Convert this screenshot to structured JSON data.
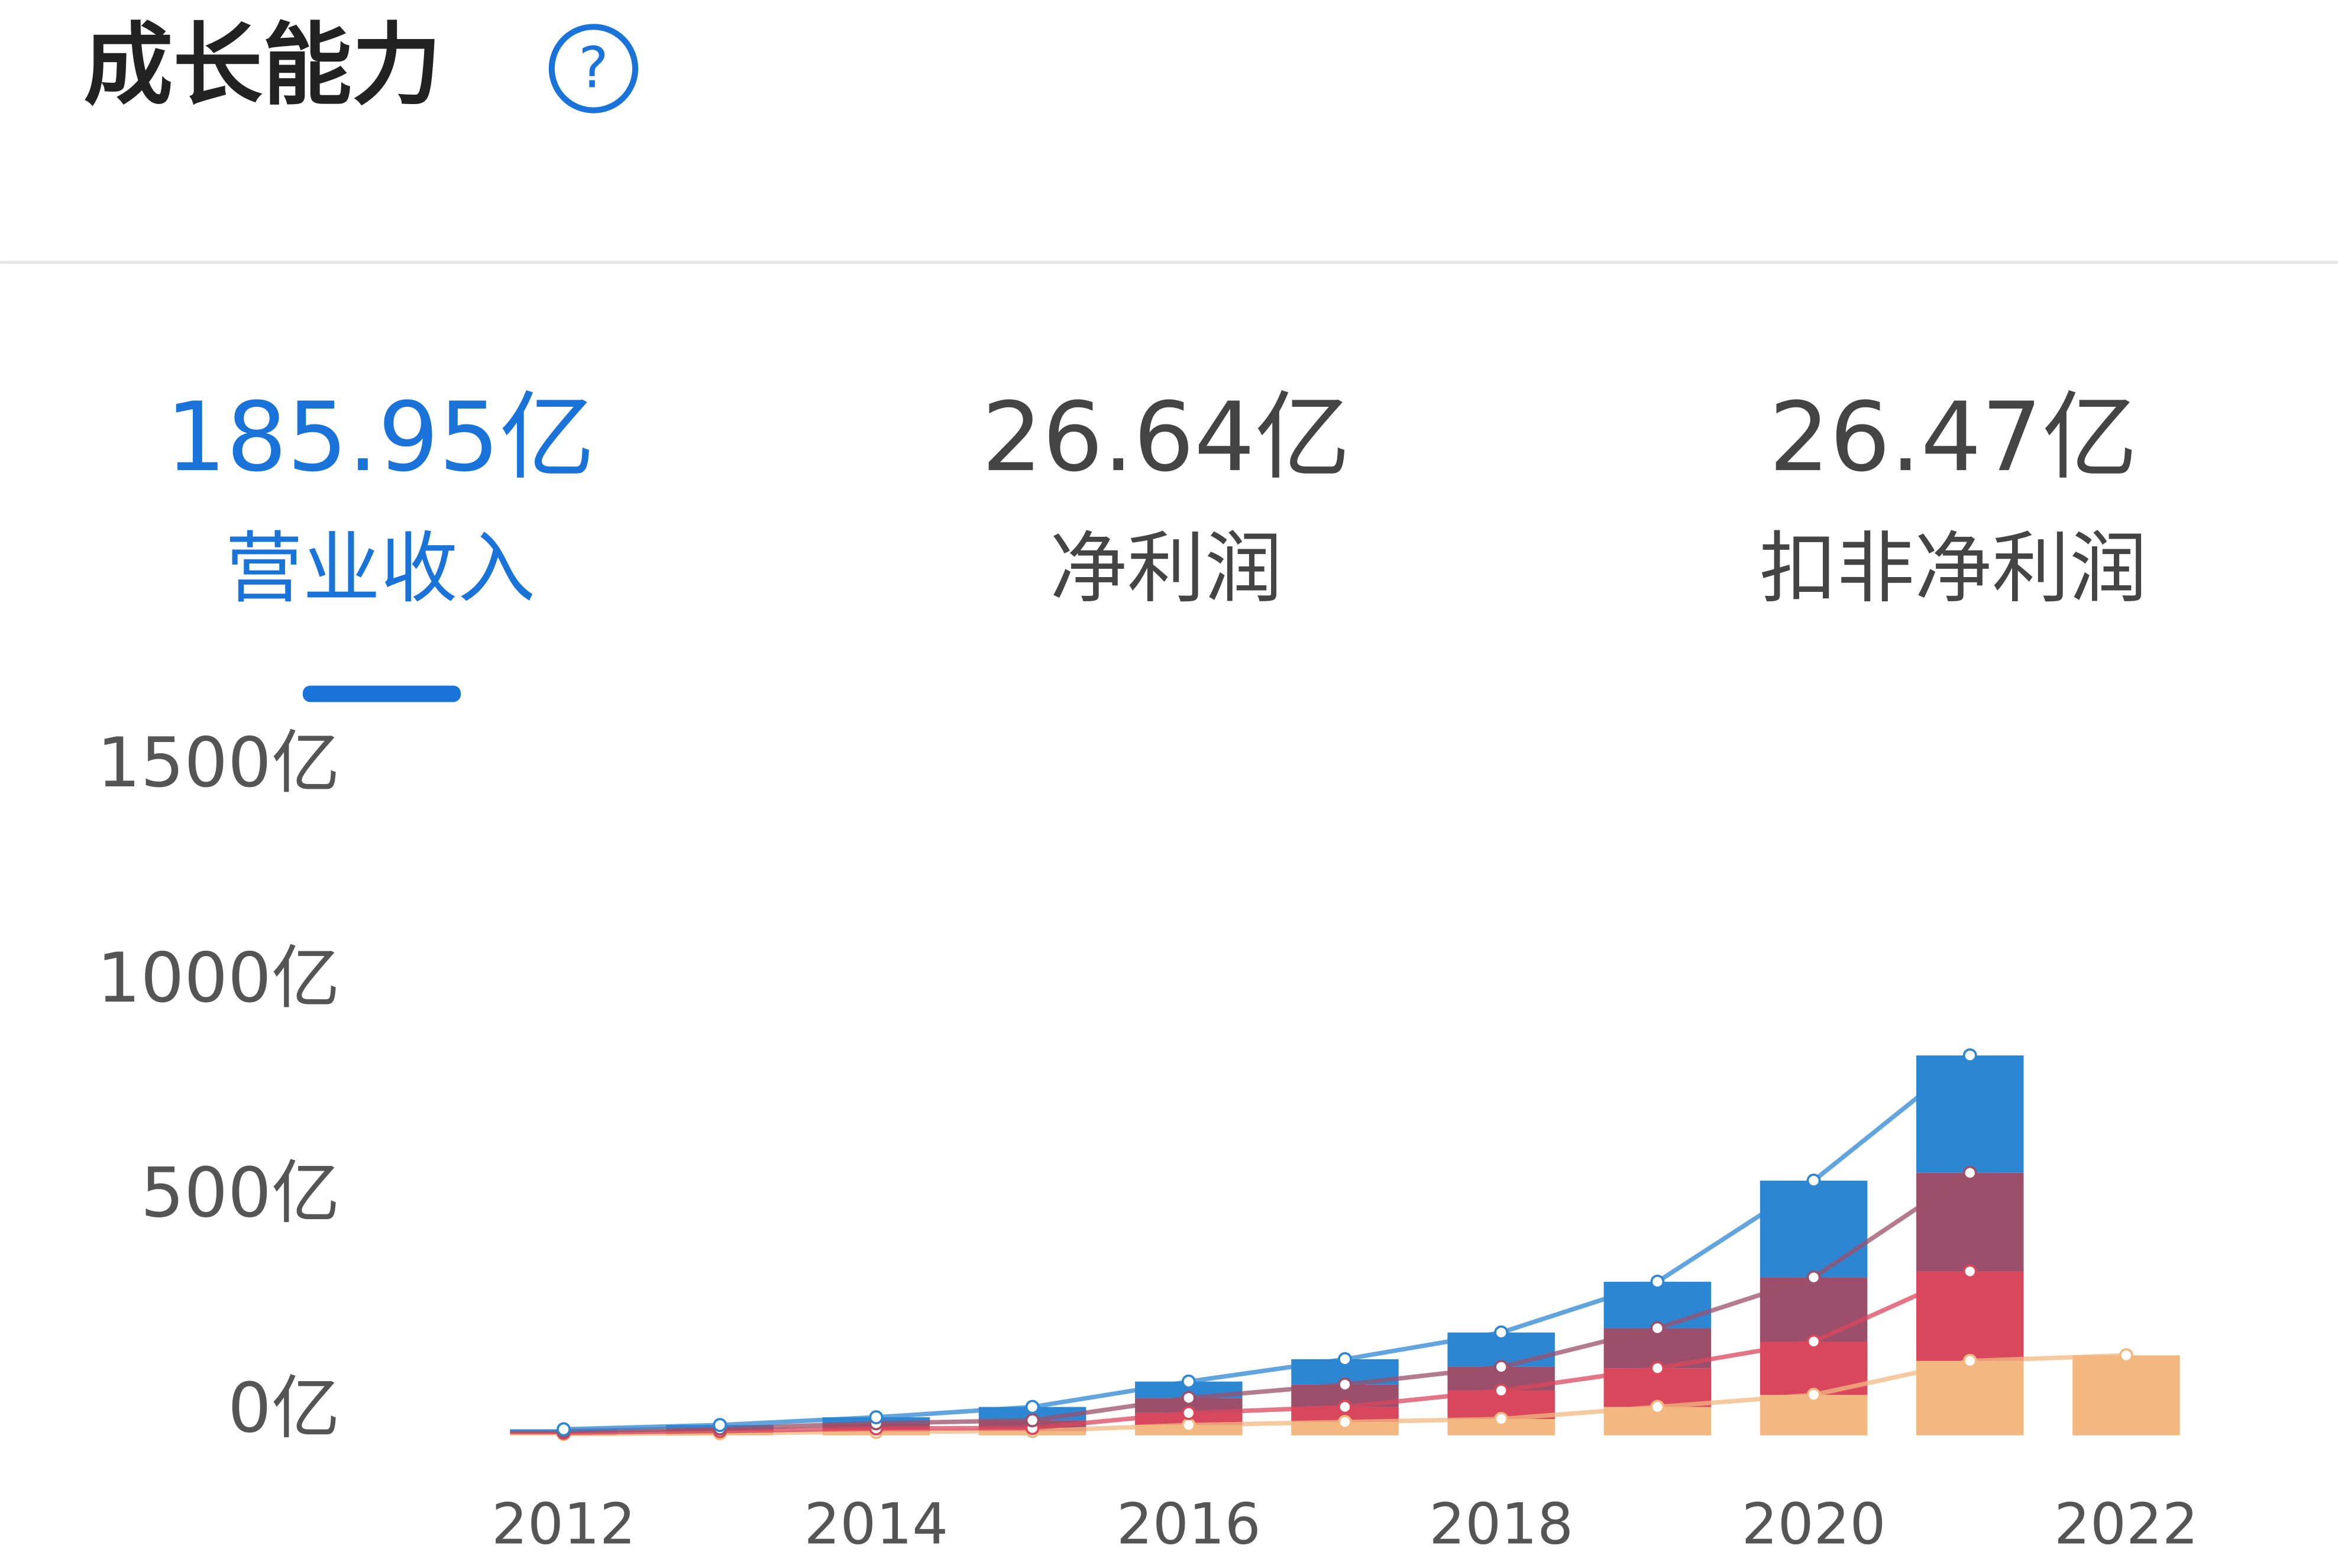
{
  "header": {
    "title": "成长能力",
    "help": "?"
  },
  "tabs": [
    {
      "value": "185.95亿",
      "label": "营业收入"
    },
    {
      "value": "26.64亿",
      "label": "净利润"
    },
    {
      "value": "26.47亿",
      "label": "扣非净利润"
    }
  ],
  "chart_data": {
    "type": "stacked-bar",
    "categories": [
      "2012",
      null,
      "2014",
      null,
      "2016",
      null,
      "2018",
      null,
      "2020",
      null,
      "2022"
    ],
    "series": [
      {
        "color": "#f2b880",
        "values": [
          3,
          5,
          8,
          10,
          24,
          31,
          38,
          66,
          94,
          173,
          186
        ]
      },
      {
        "color": "#d9475d",
        "values": [
          3,
          5,
          8,
          7,
          28,
          35,
          66,
          90,
          124,
          208,
          null
        ]
      },
      {
        "color": "#9b4f6a",
        "values": [
          4,
          6,
          12,
          18,
          35,
          52,
          55,
          93,
          149,
          229,
          null
        ]
      },
      {
        "color": "#2d86d2",
        "values": [
          4,
          8,
          14,
          31,
          38,
          59,
          80,
          108,
          225,
          273,
          null
        ]
      }
    ],
    "ylim": [
      0,
      1500
    ],
    "yticks": [
      {
        "value": 0,
        "label": "0亿"
      },
      {
        "value": 500,
        "label": "500亿"
      },
      {
        "value": 1000,
        "label": "1000亿"
      },
      {
        "value": 1500,
        "label": "1500亿"
      }
    ],
    "lines": true
  }
}
